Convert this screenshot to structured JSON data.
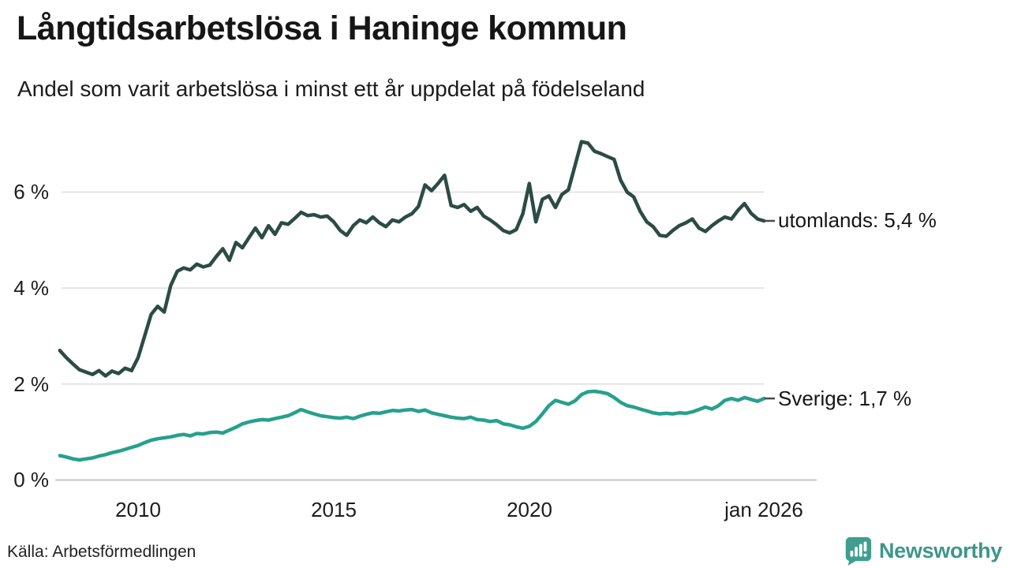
{
  "header": {
    "title": "Långtidsarbetslösa i Haninge kommun",
    "subtitle": "Andel som varit arbetslösa i minst ett år uppdelat på födelseland"
  },
  "footer": {
    "source": "Källa: Arbetsförmedlingen",
    "brand": "Newsworthy"
  },
  "colors": {
    "utomlands_line": "#2b4c44",
    "sverige_line": "#27a08e",
    "grid": "#e4e4e4",
    "axis": "#d8d8d8",
    "leader": "#4a4a4a",
    "brand_teal": "#3f9e8f",
    "text": "#1a1a1a"
  },
  "chart_data": {
    "type": "line",
    "title": "Långtidsarbetslösa i Haninge kommun",
    "subtitle": "Andel som varit arbetslösa i minst ett år uppdelat på födelseland",
    "x_start": 2008,
    "x_step": 0.1666667,
    "x_ticks": [
      2010,
      2015,
      2020,
      2026
    ],
    "x_tick_labels": [
      "2010",
      "2015",
      "2020",
      "jan 2026"
    ],
    "y_ticks": [
      0,
      2,
      4,
      6
    ],
    "y_tick_labels": [
      "0 %",
      "2 %",
      "4 %",
      "6 %"
    ],
    "ylim": [
      0,
      7.5
    ],
    "grid": true,
    "legend_position": "right-end-labels",
    "series": [
      {
        "name": "utomlands",
        "label": "utomlands: 5,4 %",
        "last_value_label": "5,4 %",
        "color": "#2b4c44",
        "values": [
          2.7,
          2.55,
          2.42,
          2.3,
          2.25,
          2.2,
          2.28,
          2.17,
          2.27,
          2.22,
          2.33,
          2.28,
          2.55,
          3.0,
          3.45,
          3.62,
          3.5,
          4.05,
          4.35,
          4.42,
          4.38,
          4.5,
          4.44,
          4.48,
          4.66,
          4.82,
          4.58,
          4.95,
          4.84,
          5.05,
          5.25,
          5.05,
          5.3,
          5.12,
          5.36,
          5.33,
          5.45,
          5.58,
          5.51,
          5.53,
          5.48,
          5.5,
          5.38,
          5.2,
          5.1,
          5.3,
          5.42,
          5.36,
          5.48,
          5.36,
          5.28,
          5.42,
          5.38,
          5.48,
          5.55,
          5.7,
          6.15,
          6.03,
          6.18,
          6.35,
          5.72,
          5.68,
          5.74,
          5.6,
          5.68,
          5.5,
          5.42,
          5.32,
          5.2,
          5.15,
          5.22,
          5.55,
          6.18,
          5.38,
          5.85,
          5.92,
          5.68,
          5.95,
          6.05,
          6.55,
          7.05,
          7.02,
          6.85,
          6.8,
          6.74,
          6.68,
          6.25,
          6.0,
          5.9,
          5.6,
          5.38,
          5.28,
          5.1,
          5.08,
          5.2,
          5.3,
          5.36,
          5.44,
          5.25,
          5.18,
          5.3,
          5.4,
          5.48,
          5.44,
          5.62,
          5.76,
          5.56,
          5.44,
          5.4
        ]
      },
      {
        "name": "Sverige",
        "label": "Sverige: 1,7 %",
        "last_value_label": "1,7 %",
        "color": "#27a08e",
        "values": [
          0.51,
          0.48,
          0.44,
          0.42,
          0.44,
          0.46,
          0.5,
          0.53,
          0.57,
          0.6,
          0.64,
          0.68,
          0.72,
          0.78,
          0.83,
          0.86,
          0.88,
          0.9,
          0.93,
          0.95,
          0.92,
          0.97,
          0.96,
          0.99,
          1.0,
          0.98,
          1.04,
          1.1,
          1.17,
          1.21,
          1.24,
          1.26,
          1.25,
          1.28,
          1.31,
          1.34,
          1.4,
          1.47,
          1.42,
          1.38,
          1.34,
          1.32,
          1.3,
          1.29,
          1.31,
          1.28,
          1.33,
          1.37,
          1.4,
          1.39,
          1.42,
          1.45,
          1.44,
          1.46,
          1.47,
          1.43,
          1.46,
          1.4,
          1.37,
          1.34,
          1.31,
          1.29,
          1.28,
          1.31,
          1.26,
          1.25,
          1.22,
          1.24,
          1.17,
          1.15,
          1.11,
          1.08,
          1.12,
          1.22,
          1.38,
          1.55,
          1.66,
          1.62,
          1.58,
          1.65,
          1.78,
          1.84,
          1.85,
          1.83,
          1.8,
          1.72,
          1.62,
          1.55,
          1.52,
          1.48,
          1.44,
          1.4,
          1.38,
          1.39,
          1.38,
          1.4,
          1.39,
          1.42,
          1.47,
          1.52,
          1.48,
          1.55,
          1.66,
          1.7,
          1.66,
          1.72,
          1.68,
          1.64,
          1.7
        ]
      }
    ]
  }
}
